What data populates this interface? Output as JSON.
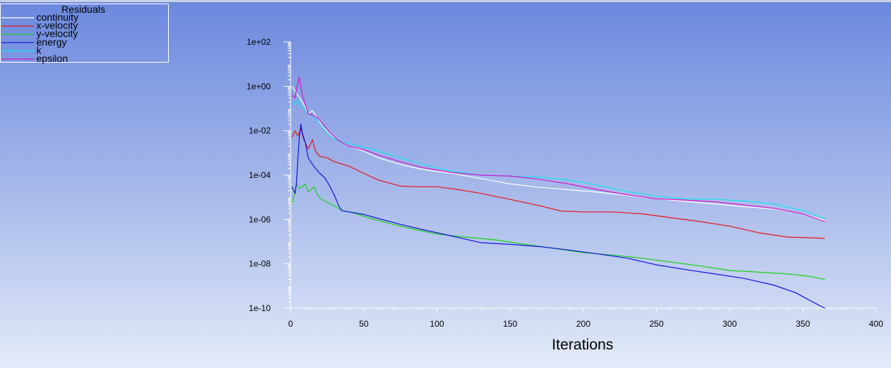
{
  "chart_data": {
    "type": "line",
    "title": "Residuals",
    "xlabel": "Iterations",
    "ylabel": "",
    "xlim": [
      0,
      400
    ],
    "ylim": [
      1e-10,
      100
    ],
    "yscale": "log",
    "grid": false,
    "legend_placement": "top-left",
    "x_ticks": [
      0,
      50,
      100,
      150,
      200,
      250,
      300,
      350,
      400
    ],
    "x_tick_labels": [
      "0",
      "50",
      "100",
      "150",
      "200",
      "250",
      "300",
      "350",
      "400"
    ],
    "y_ticks": [
      1e-10,
      1e-08,
      1e-06,
      0.0001,
      0.01,
      1,
      100
    ],
    "y_tick_labels": [
      "1e-10",
      "1e-08",
      "1e-06",
      "1e-04",
      "1e-02",
      "1e+00",
      "1e+02"
    ],
    "series": [
      {
        "name": "continuity",
        "color": "#ffffff",
        "x": [
          1,
          3,
          5,
          7,
          9,
          12,
          15,
          18,
          22,
          27,
          33,
          40,
          50,
          60,
          75,
          90,
          110,
          130,
          150,
          170,
          190,
          210,
          230,
          250,
          270,
          290,
          310,
          330,
          350,
          365
        ],
        "y": [
          1.0,
          0.6,
          0.4,
          0.25,
          0.15,
          0.06,
          0.08,
          0.04,
          0.015,
          0.007,
          0.0035,
          0.002,
          0.0012,
          0.0006,
          0.0003,
          0.00018,
          0.00012,
          7e-05,
          4e-05,
          2.8e-05,
          2.2e-05,
          1.7e-05,
          1.2e-05,
          8.5e-06,
          6.5e-06,
          5e-06,
          3.8e-06,
          3e-06,
          1.8e-06,
          9e-07
        ]
      },
      {
        "name": "x-velocity",
        "color": "#e8161a",
        "x": [
          1,
          3,
          5,
          7,
          9,
          12,
          15,
          17,
          20,
          25,
          30,
          40,
          50,
          60,
          75,
          85,
          100,
          115,
          130,
          150,
          170,
          185,
          200,
          220,
          240,
          260,
          280,
          300,
          320,
          340,
          355,
          365
        ],
        "y": [
          0.005,
          0.01,
          0.006,
          0.012,
          0.004,
          0.0015,
          0.004,
          0.0012,
          0.0007,
          0.0006,
          0.0004,
          0.00025,
          0.00012,
          6e-05,
          3.2e-05,
          3e-05,
          3e-05,
          2.2e-05,
          1.5e-05,
          8e-06,
          4.2e-06,
          2.4e-06,
          2.2e-06,
          2.2e-06,
          1.8e-06,
          1.2e-06,
          8e-07,
          5e-07,
          2.5e-07,
          1.6e-07,
          1.5e-07,
          1.4e-07
        ]
      },
      {
        "name": "y-velocity",
        "color": "#17d317",
        "x": [
          1,
          2,
          4,
          6,
          8,
          10,
          12,
          14,
          16,
          18,
          20,
          25,
          30,
          35,
          45,
          55,
          70,
          85,
          100,
          120,
          140,
          160,
          180,
          200,
          220,
          240,
          260,
          280,
          300,
          320,
          340,
          355,
          365
        ],
        "y": [
          6e-06,
          9e-06,
          4e-05,
          2.5e-05,
          3e-05,
          4e-05,
          1.8e-05,
          2.2e-05,
          3e-05,
          1.5e-05,
          9e-06,
          6e-06,
          4e-06,
          2.6e-06,
          1.8e-06,
          1.1e-06,
          6e-07,
          3.5e-07,
          2.2e-07,
          1.6e-07,
          1.2e-07,
          7.5e-08,
          5e-08,
          3.2e-08,
          2.5e-08,
          1.8e-08,
          1.2e-08,
          8e-09,
          5e-09,
          4.2e-09,
          3.5e-09,
          2.7e-09,
          2e-09
        ]
      },
      {
        "name": "energy",
        "color": "#1414e0",
        "x": [
          1,
          3,
          4,
          5,
          6,
          7,
          8,
          10,
          12,
          15,
          17,
          20,
          23,
          26,
          30,
          33,
          35,
          40,
          50,
          60,
          75,
          90,
          110,
          130,
          150,
          170,
          190,
          210,
          230,
          250,
          270,
          290,
          310,
          330,
          345,
          355,
          365
        ],
        "y": [
          3e-05,
          1.5e-05,
          4e-05,
          0.0006,
          0.005,
          0.02,
          0.008,
          0.003,
          0.0006,
          0.0003,
          0.0002,
          0.00012,
          8e-05,
          4e-05,
          1.2e-05,
          4e-06,
          2.5e-06,
          2.2e-06,
          1.7e-06,
          1.1e-06,
          6e-07,
          3.5e-07,
          1.8e-07,
          9e-08,
          7.5e-08,
          6e-08,
          4.2e-08,
          2.8e-08,
          1.8e-08,
          9e-09,
          5.5e-09,
          3.5e-09,
          2.2e-09,
          1.1e-09,
          5e-10,
          2.2e-10,
          1e-10
        ]
      },
      {
        "name": "k",
        "color": "#16e4ee",
        "x": [
          1,
          3,
          5,
          8,
          12,
          16,
          20,
          25,
          30,
          35,
          45,
          60,
          75,
          90,
          110,
          130,
          150,
          170,
          190,
          210,
          230,
          250,
          270,
          290,
          310,
          330,
          350,
          365
        ],
        "y": [
          0.2,
          0.15,
          0.25,
          0.12,
          0.06,
          0.04,
          0.02,
          0.008,
          0.004,
          0.0032,
          0.0022,
          0.0012,
          0.0006,
          0.0003,
          0.00015,
          0.0001,
          9e-05,
          8e-05,
          6e-05,
          3.5e-05,
          1.8e-05,
          1.1e-05,
          8.5e-06,
          8.2e-06,
          6.8e-06,
          5e-06,
          2.5e-06,
          1.1e-06
        ]
      },
      {
        "name": "epsilon",
        "color": "#d418c8",
        "x": [
          1,
          3,
          5,
          6,
          7,
          8,
          10,
          12,
          15,
          18,
          22,
          27,
          33,
          40,
          50,
          60,
          75,
          90,
          110,
          130,
          150,
          170,
          190,
          210,
          230,
          250,
          270,
          290,
          310,
          330,
          350,
          365
        ],
        "y": [
          0.4,
          0.3,
          1.5,
          2.5,
          1.0,
          0.4,
          0.15,
          0.06,
          0.05,
          0.04,
          0.02,
          0.008,
          0.0035,
          0.002,
          0.0014,
          0.0008,
          0.0004,
          0.00022,
          0.00013,
          0.0001,
          9e-05,
          6.5e-05,
          4e-05,
          2.2e-05,
          1.3e-05,
          8.5e-06,
          7.5e-06,
          6.2e-06,
          4.5e-06,
          3.2e-06,
          1.8e-06,
          8e-07
        ]
      }
    ]
  }
}
